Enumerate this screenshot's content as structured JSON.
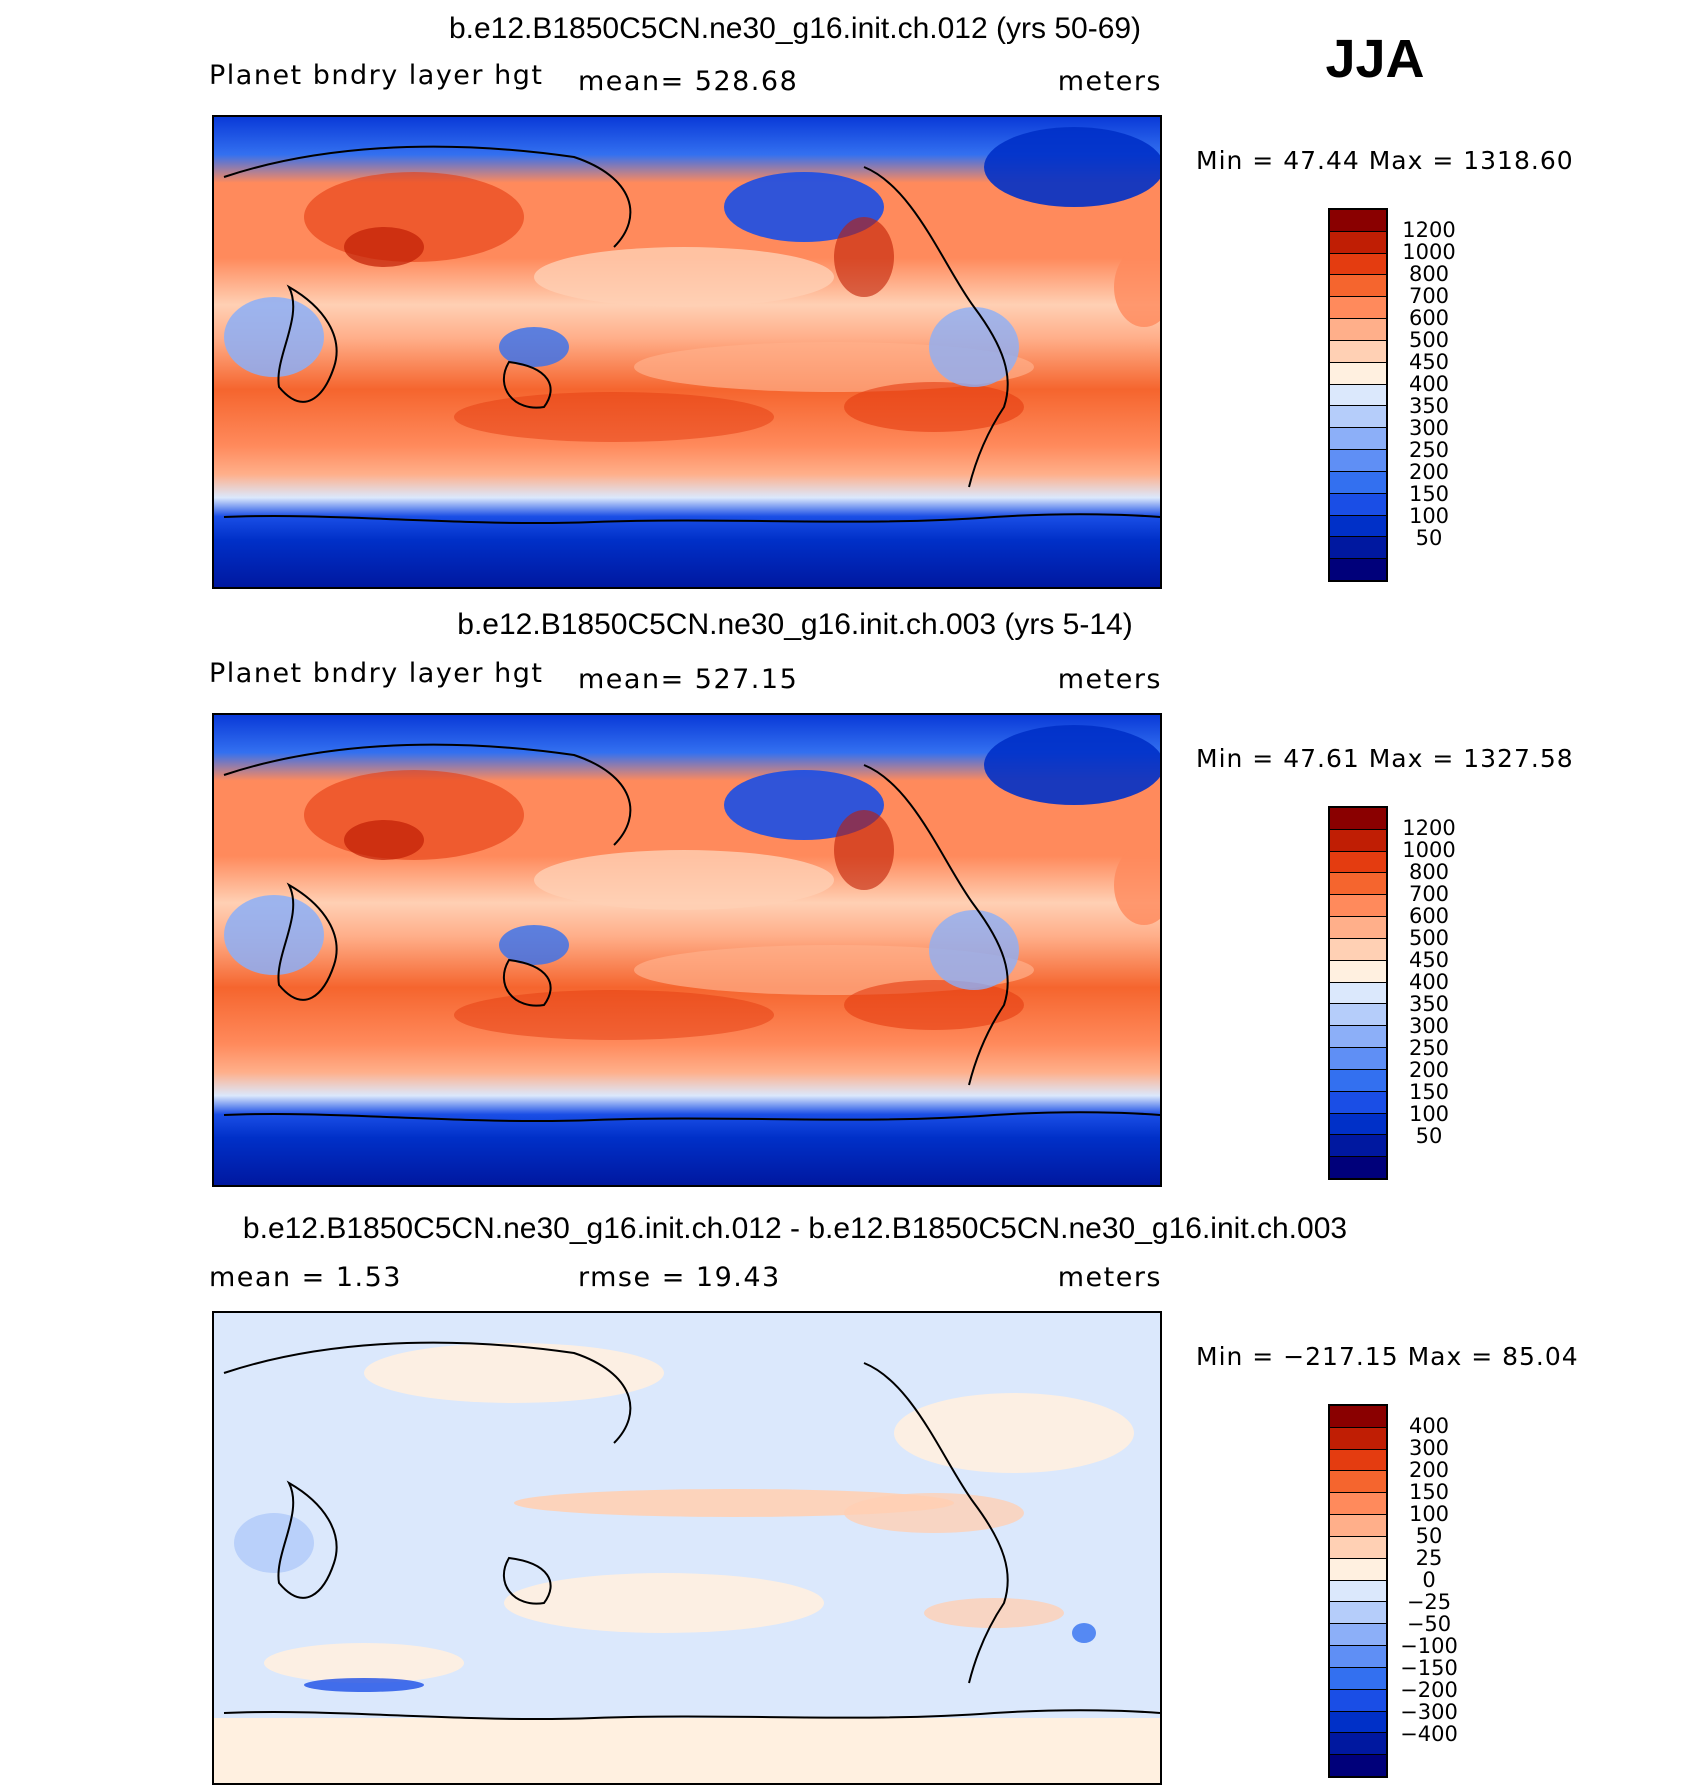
{
  "season": "JJA",
  "colors": {
    "abs_scale": [
      "#00007a",
      "#0018a0",
      "#0030c8",
      "#1a4ee6",
      "#3370f0",
      "#5f8ff5",
      "#8caff8",
      "#b5cdfa",
      "#dbe8fc",
      "#fff0e0",
      "#ffd0b4",
      "#ffaf8a",
      "#ff8a5c",
      "#f5652e",
      "#e43c10",
      "#c01e04",
      "#8a0000"
    ],
    "diff_scale": [
      "#00007a",
      "#0018a0",
      "#0030c8",
      "#1a4ee6",
      "#3370f0",
      "#5f8ff5",
      "#8caff8",
      "#b5cdfa",
      "#dbe8fc",
      "#fff0e0",
      "#ffd0b4",
      "#ffaf8a",
      "#ff8a5c",
      "#f5652e",
      "#e43c10",
      "#c01e04",
      "#8a0000"
    ]
  },
  "panels": [
    {
      "title": "b.e12.B1850C5CN.ne30_g16.init.ch.012 (yrs 50-69)",
      "left_label": "Planet bndry layer hgt",
      "center_label": "mean=  528.68",
      "right_label": "meters",
      "minmax": "Min =   47.44  Max  =  1318.60",
      "colorbar_labels": [
        "1200",
        "1000",
        "800",
        "700",
        "600",
        "500",
        "450",
        "400",
        "350",
        "300",
        "250",
        "200",
        "150",
        "100",
        "50"
      ]
    },
    {
      "title": "b.e12.B1850C5CN.ne30_g16.init.ch.003 (yrs 5-14)",
      "left_label": "Planet bndry layer hgt",
      "center_label": "mean=  527.15",
      "right_label": "meters",
      "minmax": "Min =   47.61  Max  =  1327.58",
      "colorbar_labels": [
        "1200",
        "1000",
        "800",
        "700",
        "600",
        "500",
        "450",
        "400",
        "350",
        "300",
        "250",
        "200",
        "150",
        "100",
        "50"
      ]
    },
    {
      "title": "b.e12.B1850C5CN.ne30_g16.init.ch.012 - b.e12.B1850C5CN.ne30_g16.init.ch.003",
      "left_label": "mean =     1.53",
      "center_label": "rmse =    19.43",
      "right_label": "meters",
      "minmax": "Min = −217.15  Max =    85.04",
      "colorbar_labels": [
        "400",
        "300",
        "200",
        "150",
        "100",
        "50",
        "25",
        "0",
        "−25",
        "−50",
        "−100",
        "−150",
        "−200",
        "−300",
        "−400"
      ]
    }
  ]
}
